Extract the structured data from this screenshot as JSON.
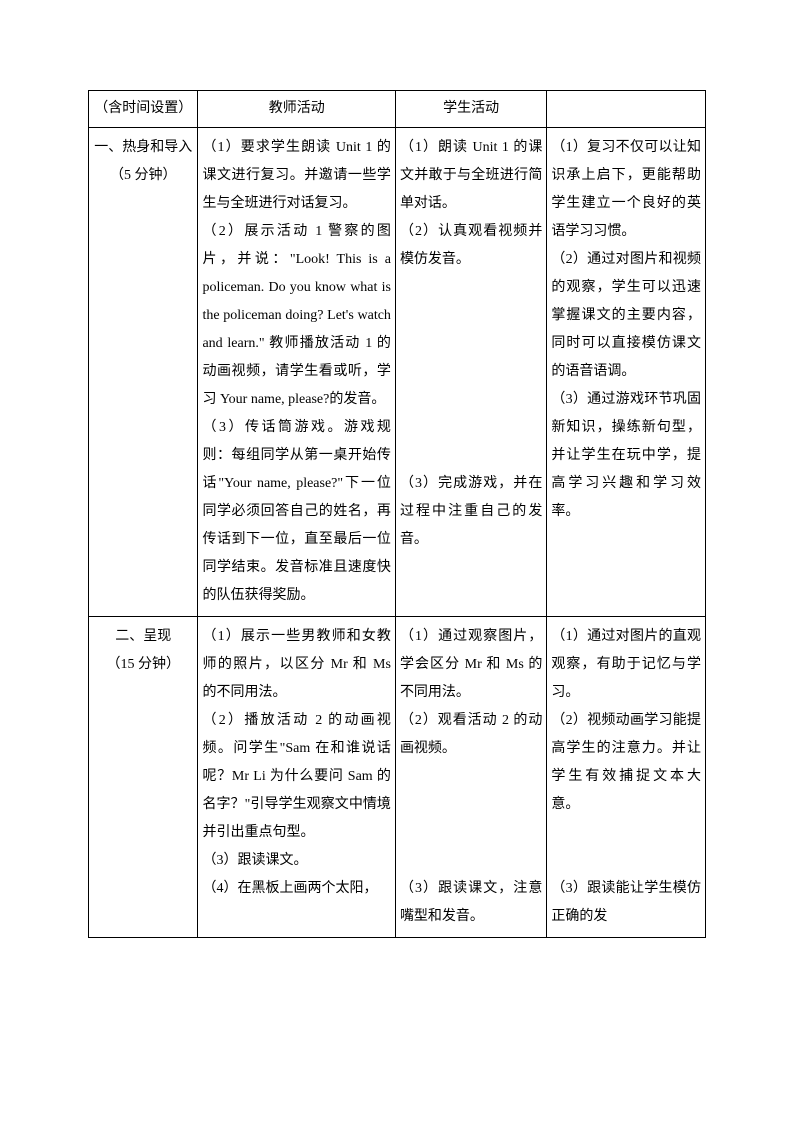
{
  "headers": {
    "col1": "（含时间设置）",
    "col2": "教师活动",
    "col3": "学生活动",
    "col4": ""
  },
  "rows": [
    {
      "section": "一、热身和导入\n（5 分钟）",
      "teacher": "（1）要求学生朗读 Unit 1 的课文进行复习。并邀请一些学生与全班进行对话复习。\n（2）展示活动 1 警察的图片，并说：\"Look! This is a policeman. Do you know what is the policeman doing? Let's watch and learn.\" 教师播放活动 1 的动画视频，请学生看或听，学习 Your name, please?的发音。\n（3）传话筒游戏。游戏规则：每组同学从第一桌开始传话\"Your name, please?\"下一位同学必须回答自己的姓名，再传话到下一位，直至最后一位同学结束。发音标准且速度快的队伍获得奖励。",
      "student": "（1）朗读 Unit 1 的课文并敢于与全班进行简单对话。\n（2）认真观看视频并模仿发音。\n\n\n\n\n\n\n\n（3）完成游戏，并在过程中注重自己的发音。",
      "notes": "（1）复习不仅可以让知识承上启下，更能帮助学生建立一个良好的英语学习习惯。\n（2）通过对图片和视频的观察，学生可以迅速掌握课文的主要内容，同时可以直接模仿课文的语音语调。\n（3）通过游戏环节巩固新知识，操练新句型，并让学生在玩中学，提高学习兴趣和学习效率。"
    },
    {
      "section": "二、呈现\n（15 分钟）",
      "teacher": "（1）展示一些男教师和女教师的照片，以区分 Mr 和 Ms 的不同用法。\n（2）播放活动 2 的动画视频。问学生\"Sam 在和谁说话呢？Mr Li 为什么要问 Sam 的名字？\"引导学生观察文中情境并引出重点句型。\n（3）跟读课文。\n（4）在黑板上画两个太阳，",
      "student": "（1）通过观察图片，学会区分 Mr 和 Ms 的不同用法。\n（2）观看活动 2 的动画视频。\n\n\n\n\n（3）跟读课文，注意嘴型和发音。",
      "notes": "（1）通过对图片的直观观察，有助于记忆与学习。\n（2）视频动画学习能提高学生的注意力。并让学生有效捕捉文本大意。\n\n\n（3）跟读能让学生模仿正确的发"
    }
  ]
}
